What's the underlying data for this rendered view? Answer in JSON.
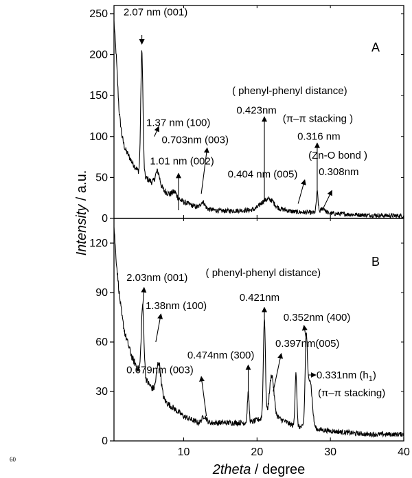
{
  "page_number": "60",
  "chart_data": {
    "type": "line",
    "title": "",
    "xlabel_italic": "2theta",
    "xlabel_unit": " / degree",
    "ylabel_italic": "Intensity",
    "ylabel_unit": " / a.u.",
    "xlim": [
      0.5,
      40
    ],
    "x_ticks": [
      10,
      20,
      30,
      40
    ],
    "grid": false,
    "panels": [
      {
        "label": "A",
        "ylim": [
          0,
          260
        ],
        "y_ticks": [
          0,
          50,
          100,
          150,
          200,
          250
        ],
        "baseline": [
          [
            0.5,
            240
          ],
          [
            0.8,
            200
          ],
          [
            1.2,
            130
          ],
          [
            1.6,
            100
          ],
          [
            2,
            85
          ],
          [
            3,
            68
          ],
          [
            4,
            55
          ],
          [
            6,
            42
          ],
          [
            8,
            30
          ],
          [
            10,
            20
          ],
          [
            12,
            13
          ],
          [
            15,
            9
          ],
          [
            19,
            10
          ],
          [
            22,
            14
          ],
          [
            25,
            8
          ],
          [
            30,
            6
          ],
          [
            35,
            4
          ],
          [
            40,
            3
          ]
        ],
        "peaks": [
          [
            4.3,
            150,
            0.15
          ],
          [
            6.45,
            18,
            0.3
          ],
          [
            8.75,
            6,
            0.3
          ],
          [
            12.6,
            8,
            0.3
          ],
          [
            21,
            8,
            0.6
          ],
          [
            21.9,
            6,
            0.5
          ],
          [
            28.2,
            25,
            0.12
          ],
          [
            29,
            6,
            0.3
          ]
        ],
        "noise": 4,
        "annotations": [
          {
            "text": "2.07 nm (001)",
            "x": 1.8,
            "y": 248
          },
          {
            "text": "1.37 nm (100)",
            "x": 4.9,
            "y": 113
          },
          {
            "text": "0.703nm (003)",
            "x": 7.0,
            "y": 92
          },
          {
            "text": "1.01 nm (002)",
            "x": 5.4,
            "y": 66
          },
          {
            "text": "( phenyl-phenyl distance)",
            "x": 16.6,
            "y": 152
          },
          {
            "text": "0.423nm",
            "x": 17.2,
            "y": 128
          },
          {
            "text": "(π–π  stacking )",
            "x": 23.5,
            "y": 118
          },
          {
            "text": "0.316 nm",
            "x": 25.5,
            "y": 96
          },
          {
            "text": "(Zn-O bond )",
            "x": 27.0,
            "y": 73
          },
          {
            "text": "0.404 nm (005)",
            "x": 16.0,
            "y": 50
          },
          {
            "text": "0.308nm",
            "x": 28.4,
            "y": 53
          }
        ],
        "arrows": [
          {
            "from": [
              4.3,
              224
            ],
            "to": [
              4.3,
              213
            ]
          },
          {
            "from": [
              6.0,
              100
            ],
            "to": [
              6.6,
              112
            ]
          },
          {
            "from": [
              12.4,
              30
            ],
            "to": [
              13.2,
              86
            ]
          },
          {
            "from": [
              9.3,
              10
            ],
            "to": [
              9.3,
              55
            ]
          },
          {
            "from": [
              21.0,
              24
            ],
            "to": [
              21.0,
              124
            ]
          },
          {
            "from": [
              28.2,
              34
            ],
            "to": [
              28.2,
              92
            ]
          },
          {
            "from": [
              29.0,
              12
            ],
            "to": [
              30.2,
              34
            ]
          },
          {
            "from": [
              25.6,
              18
            ],
            "to": [
              26.5,
              47
            ]
          }
        ]
      },
      {
        "label": "B",
        "ylim": [
          0,
          135
        ],
        "y_ticks": [
          0,
          30,
          60,
          90,
          120
        ],
        "baseline": [
          [
            0.5,
            130
          ],
          [
            0.8,
            110
          ],
          [
            1.2,
            90
          ],
          [
            1.6,
            75
          ],
          [
            2,
            65
          ],
          [
            3,
            50
          ],
          [
            4,
            42
          ],
          [
            6,
            30
          ],
          [
            8,
            22
          ],
          [
            10,
            15
          ],
          [
            12,
            11
          ],
          [
            15,
            11
          ],
          [
            19,
            11
          ],
          [
            22,
            16
          ],
          [
            25,
            9
          ],
          [
            30,
            6
          ],
          [
            35,
            4
          ],
          [
            40,
            4
          ]
        ],
        "peaks": [
          [
            4.4,
            42,
            0.18
          ],
          [
            6.6,
            20,
            0.3
          ],
          [
            12.8,
            4,
            0.3
          ],
          [
            18.8,
            18,
            0.12
          ],
          [
            21.0,
            60,
            0.14
          ],
          [
            22.0,
            24,
            0.3
          ],
          [
            25.3,
            33,
            0.12
          ],
          [
            26.7,
            50,
            0.15
          ],
          [
            27.2,
            30,
            0.3
          ]
        ],
        "noise": 2.2,
        "annotations": [
          {
            "text": "2.03nm (001)",
            "x": 2.2,
            "y": 97
          },
          {
            "text": "1.38nm (100)",
            "x": 4.8,
            "y": 80
          },
          {
            "text": "( phenyl-phenyl distance)",
            "x": 13.0,
            "y": 100
          },
          {
            "text": "0.421nm",
            "x": 17.6,
            "y": 85
          },
          {
            "text": "0.352nm (400)",
            "x": 23.6,
            "y": 73
          },
          {
            "text": "0.397nm(005)",
            "x": 22.5,
            "y": 57
          },
          {
            "text": "0.474nm (300)",
            "x": 10.5,
            "y": 50
          },
          {
            "text": "0.679nm (003)",
            "x": 2.2,
            "y": 41
          },
          {
            "text": "0.331nm (h",
            "sub": "1",
            "after": ")",
            "x": 28.1,
            "y": 38
          },
          {
            "text": "(π–π stacking)",
            "x": 28.3,
            "y": 27
          }
        ],
        "arrows": [
          {
            "from": [
              4.4,
              80
            ],
            "to": [
              4.6,
              93
            ]
          },
          {
            "from": [
              6.2,
              60
            ],
            "to": [
              6.9,
              77
            ]
          },
          {
            "from": [
              13.1,
              15
            ],
            "to": [
              12.4,
              39
            ]
          },
          {
            "from": [
              18.8,
              30
            ],
            "to": [
              18.8,
              46
            ]
          },
          {
            "from": [
              21.0,
              72
            ],
            "to": [
              21.0,
              81
            ]
          },
          {
            "from": [
              22.2,
              30
            ],
            "to": [
              23.3,
              53
            ]
          },
          {
            "from": [
              26.7,
              62
            ],
            "to": [
              26.4,
              70
            ]
          },
          {
            "from": [
              27.0,
              40
            ],
            "to": [
              28.0,
              40
            ]
          }
        ]
      }
    ]
  }
}
